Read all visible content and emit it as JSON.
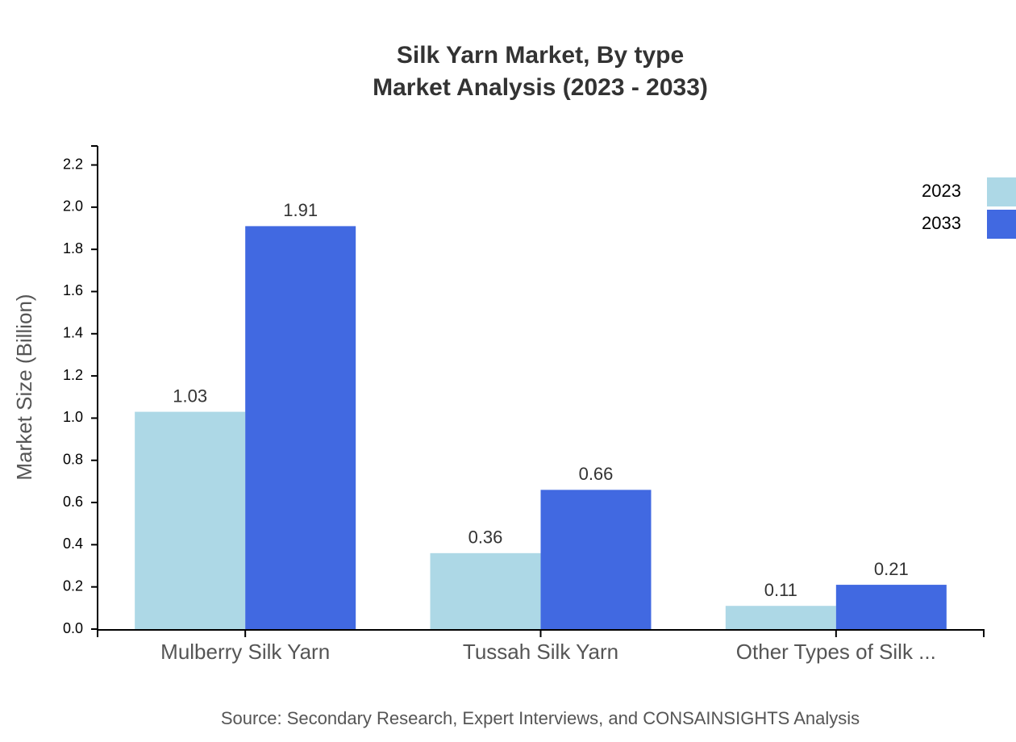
{
  "chart_data": {
    "type": "bar",
    "title": "Silk Yarn Market, By type",
    "subtitle": "Market Analysis (2023 - 2033)",
    "y_label": "Market Size (Billion)",
    "source": "Source: Secondary Research, Expert Interviews, and CONSAINSIGHTS Analysis",
    "categories": [
      "Mulberry Silk Yarn",
      "Tussah Silk Yarn",
      "Other Types of Silk ..."
    ],
    "series": [
      {
        "name": "2023",
        "color": "#add8e6",
        "values": [
          1.03,
          0.36,
          0.11
        ]
      },
      {
        "name": "2033",
        "color": "#4169e1",
        "values": [
          1.91,
          0.66,
          0.21
        ]
      }
    ],
    "ylim": [
      0,
      2.29
    ],
    "yticks": [
      {
        "value": 0,
        "label": "0.0"
      },
      0.2,
      0.4,
      0.6,
      0.8,
      {
        "value": 1,
        "label": "1.0"
      },
      1.2,
      1.4,
      1.6,
      1.8,
      {
        "value": 2,
        "label": "2.0"
      },
      2.2
    ],
    "legend": "top-right"
  }
}
